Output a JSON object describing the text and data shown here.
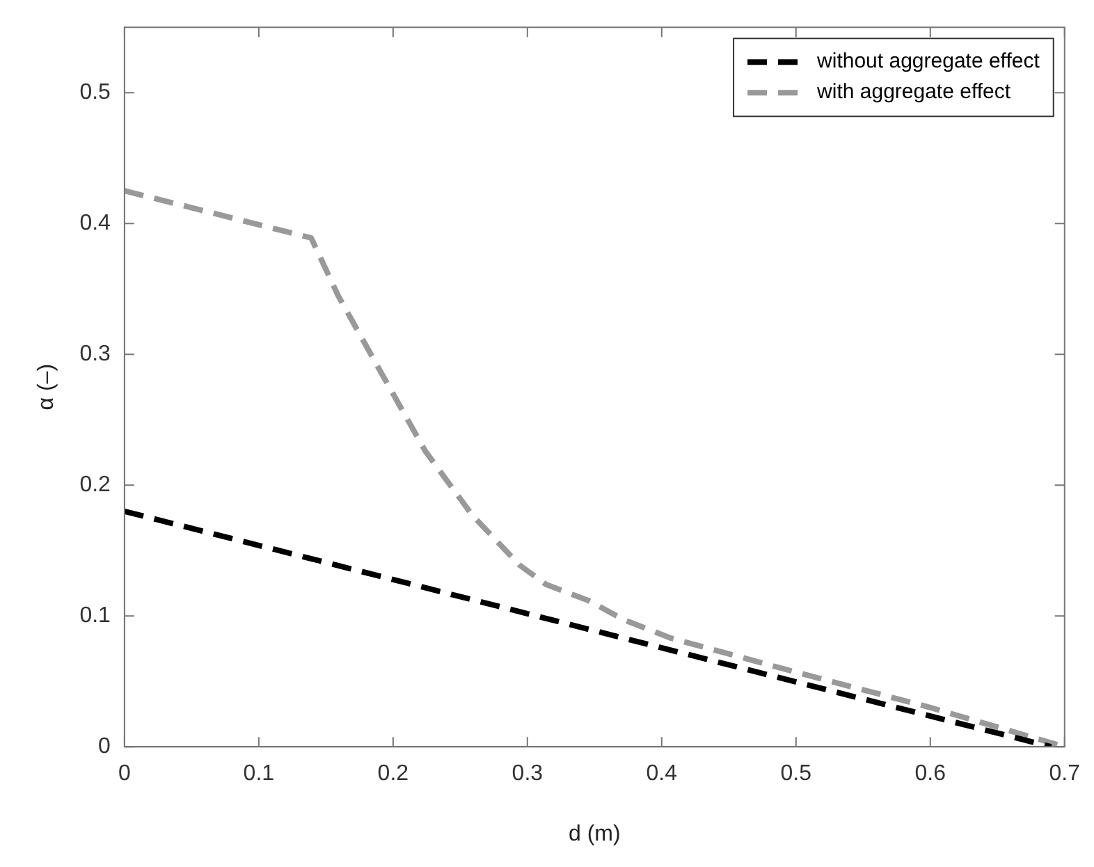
{
  "chart_data": {
    "type": "line",
    "xlabel": "d (m)",
    "ylabel": "α (–)",
    "xlim": [
      0,
      0.7
    ],
    "xticks": [
      0,
      0.1,
      0.2,
      0.3,
      0.4,
      0.5,
      0.6,
      0.7
    ],
    "ylim": [
      0,
      0.55
    ],
    "yticks": [
      0,
      0.1,
      0.2,
      0.3,
      0.4,
      0.5
    ],
    "grid": false,
    "legend": "top right",
    "line_style": "dashed",
    "marker": "none",
    "series": [
      {
        "name": "without aggregate effect",
        "color": "#000000",
        "x": [
          0,
          0.69
        ],
        "values": [
          0.18,
          0
        ]
      },
      {
        "name": "with aggregate effect",
        "color": "#999999",
        "x": [
          0,
          0.139,
          0.159,
          0.19,
          0.224,
          0.259,
          0.294,
          0.314,
          0.345,
          0.372,
          0.407,
          0.5,
          0.6,
          0.7
        ],
        "values": [
          0.425,
          0.389,
          0.345,
          0.288,
          0.226,
          0.177,
          0.139,
          0.124,
          0.112,
          0.097,
          0.083,
          0.057,
          0.03,
          0
        ]
      }
    ]
  }
}
